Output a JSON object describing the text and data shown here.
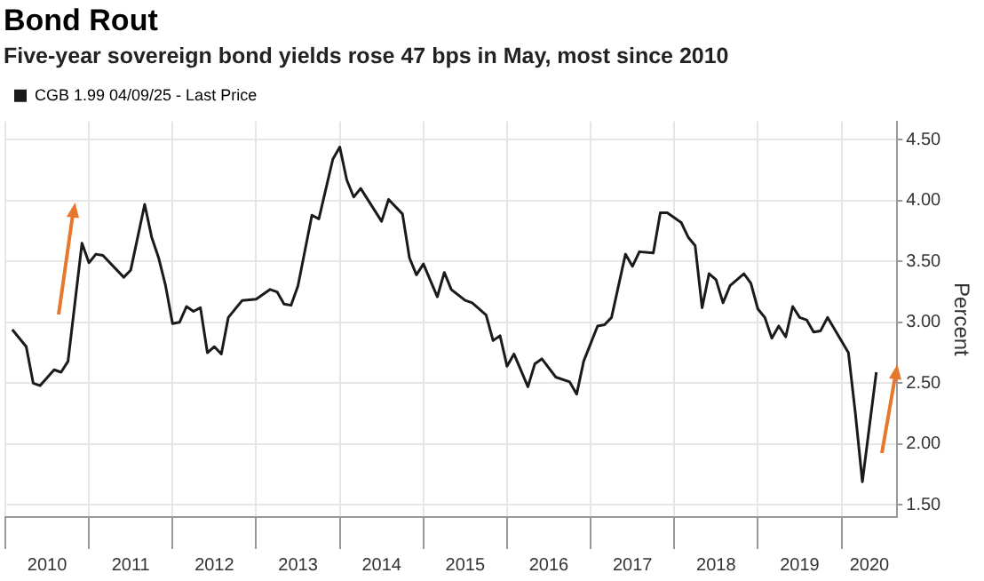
{
  "chart_data": {
    "type": "line",
    "title": "Bond Rout",
    "subtitle": "Five-year sovereign bond yields rose 47 bps in May, most since 2010",
    "ylabel": "Percent",
    "legend": "top left",
    "grid": true,
    "marker": "none",
    "line_style": "solid",
    "xlim": [
      "2010-01",
      "2020-09"
    ],
    "xticks": [
      {
        "value": "2010-01",
        "label": null
      },
      {
        "value": "2010-07",
        "label": "2010"
      },
      {
        "value": "2011-01",
        "label": null
      },
      {
        "value": "2011-07",
        "label": "2011"
      },
      {
        "value": "2012-01",
        "label": null
      },
      {
        "value": "2012-07",
        "label": "2012"
      },
      {
        "value": "2013-01",
        "label": null
      },
      {
        "value": "2013-07",
        "label": "2013"
      },
      {
        "value": "2014-01",
        "label": null
      },
      {
        "value": "2014-07",
        "label": "2014"
      },
      {
        "value": "2015-01",
        "label": null
      },
      {
        "value": "2015-07",
        "label": "2015"
      },
      {
        "value": "2016-01",
        "label": null
      },
      {
        "value": "2016-07",
        "label": "2016"
      },
      {
        "value": "2017-01",
        "label": null
      },
      {
        "value": "2017-07",
        "label": "2017"
      },
      {
        "value": "2018-01",
        "label": null
      },
      {
        "value": "2018-07",
        "label": "2018"
      },
      {
        "value": "2019-01",
        "label": null
      },
      {
        "value": "2019-07",
        "label": "2019"
      },
      {
        "value": "2020-01",
        "label": null
      },
      {
        "value": "2020-05",
        "label": "2020"
      }
    ],
    "ylim": [
      1.4,
      4.65
    ],
    "yticks": [
      {
        "value": 1.5,
        "label": "1.50"
      },
      {
        "value": 2,
        "label": "2.00"
      },
      {
        "value": 2.5,
        "label": "2.50"
      },
      {
        "value": 3,
        "label": "3.00"
      },
      {
        "value": 3.5,
        "label": "3.50"
      },
      {
        "value": 4,
        "label": "4.00"
      },
      {
        "value": 4.5,
        "label": "4.50"
      }
    ],
    "x": [
      "2010-02",
      "2010-04",
      "2010-05",
      "2010-06",
      "2010-08",
      "2010-09",
      "2010-10",
      "2010-12",
      "2011-01",
      "2011-02",
      "2011-03",
      "2011-06",
      "2011-07",
      "2011-09",
      "2011-10",
      "2011-11",
      "2011-12",
      "2012-01",
      "2012-02",
      "2012-03",
      "2012-04",
      "2012-05",
      "2012-06",
      "2012-07",
      "2012-08",
      "2012-09",
      "2012-11",
      "2013-01",
      "2013-03",
      "2013-04",
      "2013-05",
      "2013-06",
      "2013-07",
      "2013-09",
      "2013-10",
      "2013-12",
      "2014-01",
      "2014-02",
      "2014-03",
      "2014-04",
      "2014-07",
      "2014-08",
      "2014-10",
      "2014-11",
      "2014-12",
      "2015-01",
      "2015-03",
      "2015-04",
      "2015-05",
      "2015-07",
      "2015-08",
      "2015-10",
      "2015-11",
      "2015-12",
      "2016-01",
      "2016-02",
      "2016-04",
      "2016-05",
      "2016-06",
      "2016-08",
      "2016-10",
      "2016-11",
      "2016-12",
      "2017-02",
      "2017-03",
      "2017-04",
      "2017-06",
      "2017-07",
      "2017-08",
      "2017-10",
      "2017-11",
      "2017-12",
      "2018-02",
      "2018-03",
      "2018-04",
      "2018-05",
      "2018-06",
      "2018-07",
      "2018-08",
      "2018-09",
      "2018-11",
      "2018-12",
      "2019-01",
      "2019-02",
      "2019-03",
      "2019-04",
      "2019-05",
      "2019-06",
      "2019-07",
      "2019-08",
      "2019-09",
      "2019-10",
      "2019-11",
      "2020-02",
      "2020-03",
      "2020-04",
      "2020-06"
    ],
    "series": [
      {
        "name": "CGB 1.99 04/09/25 - Last Price",
        "color": "#1a1a1a",
        "values": [
          2.94,
          2.8,
          2.5,
          2.48,
          2.61,
          2.59,
          2.68,
          3.65,
          3.49,
          3.56,
          3.55,
          3.37,
          3.43,
          3.97,
          3.7,
          3.53,
          3.3,
          2.99,
          3.0,
          3.13,
          3.09,
          3.12,
          2.75,
          2.8,
          2.74,
          3.04,
          3.18,
          3.19,
          3.27,
          3.25,
          3.15,
          3.14,
          3.3,
          3.88,
          3.85,
          4.34,
          4.44,
          4.17,
          4.03,
          4.1,
          3.83,
          4.01,
          3.89,
          3.53,
          3.39,
          3.48,
          3.21,
          3.41,
          3.27,
          3.18,
          3.16,
          3.06,
          2.85,
          2.89,
          2.64,
          2.74,
          2.47,
          2.66,
          2.7,
          2.55,
          2.51,
          2.41,
          2.68,
          2.97,
          2.98,
          3.04,
          3.56,
          3.46,
          3.58,
          3.57,
          3.9,
          3.9,
          3.82,
          3.7,
          3.63,
          3.12,
          3.4,
          3.35,
          3.16,
          3.3,
          3.4,
          3.32,
          3.11,
          3.04,
          2.87,
          2.97,
          2.88,
          3.13,
          3.04,
          3.02,
          2.92,
          2.93,
          3.04,
          2.75,
          2.25,
          1.69,
          2.59
        ]
      }
    ]
  }
}
